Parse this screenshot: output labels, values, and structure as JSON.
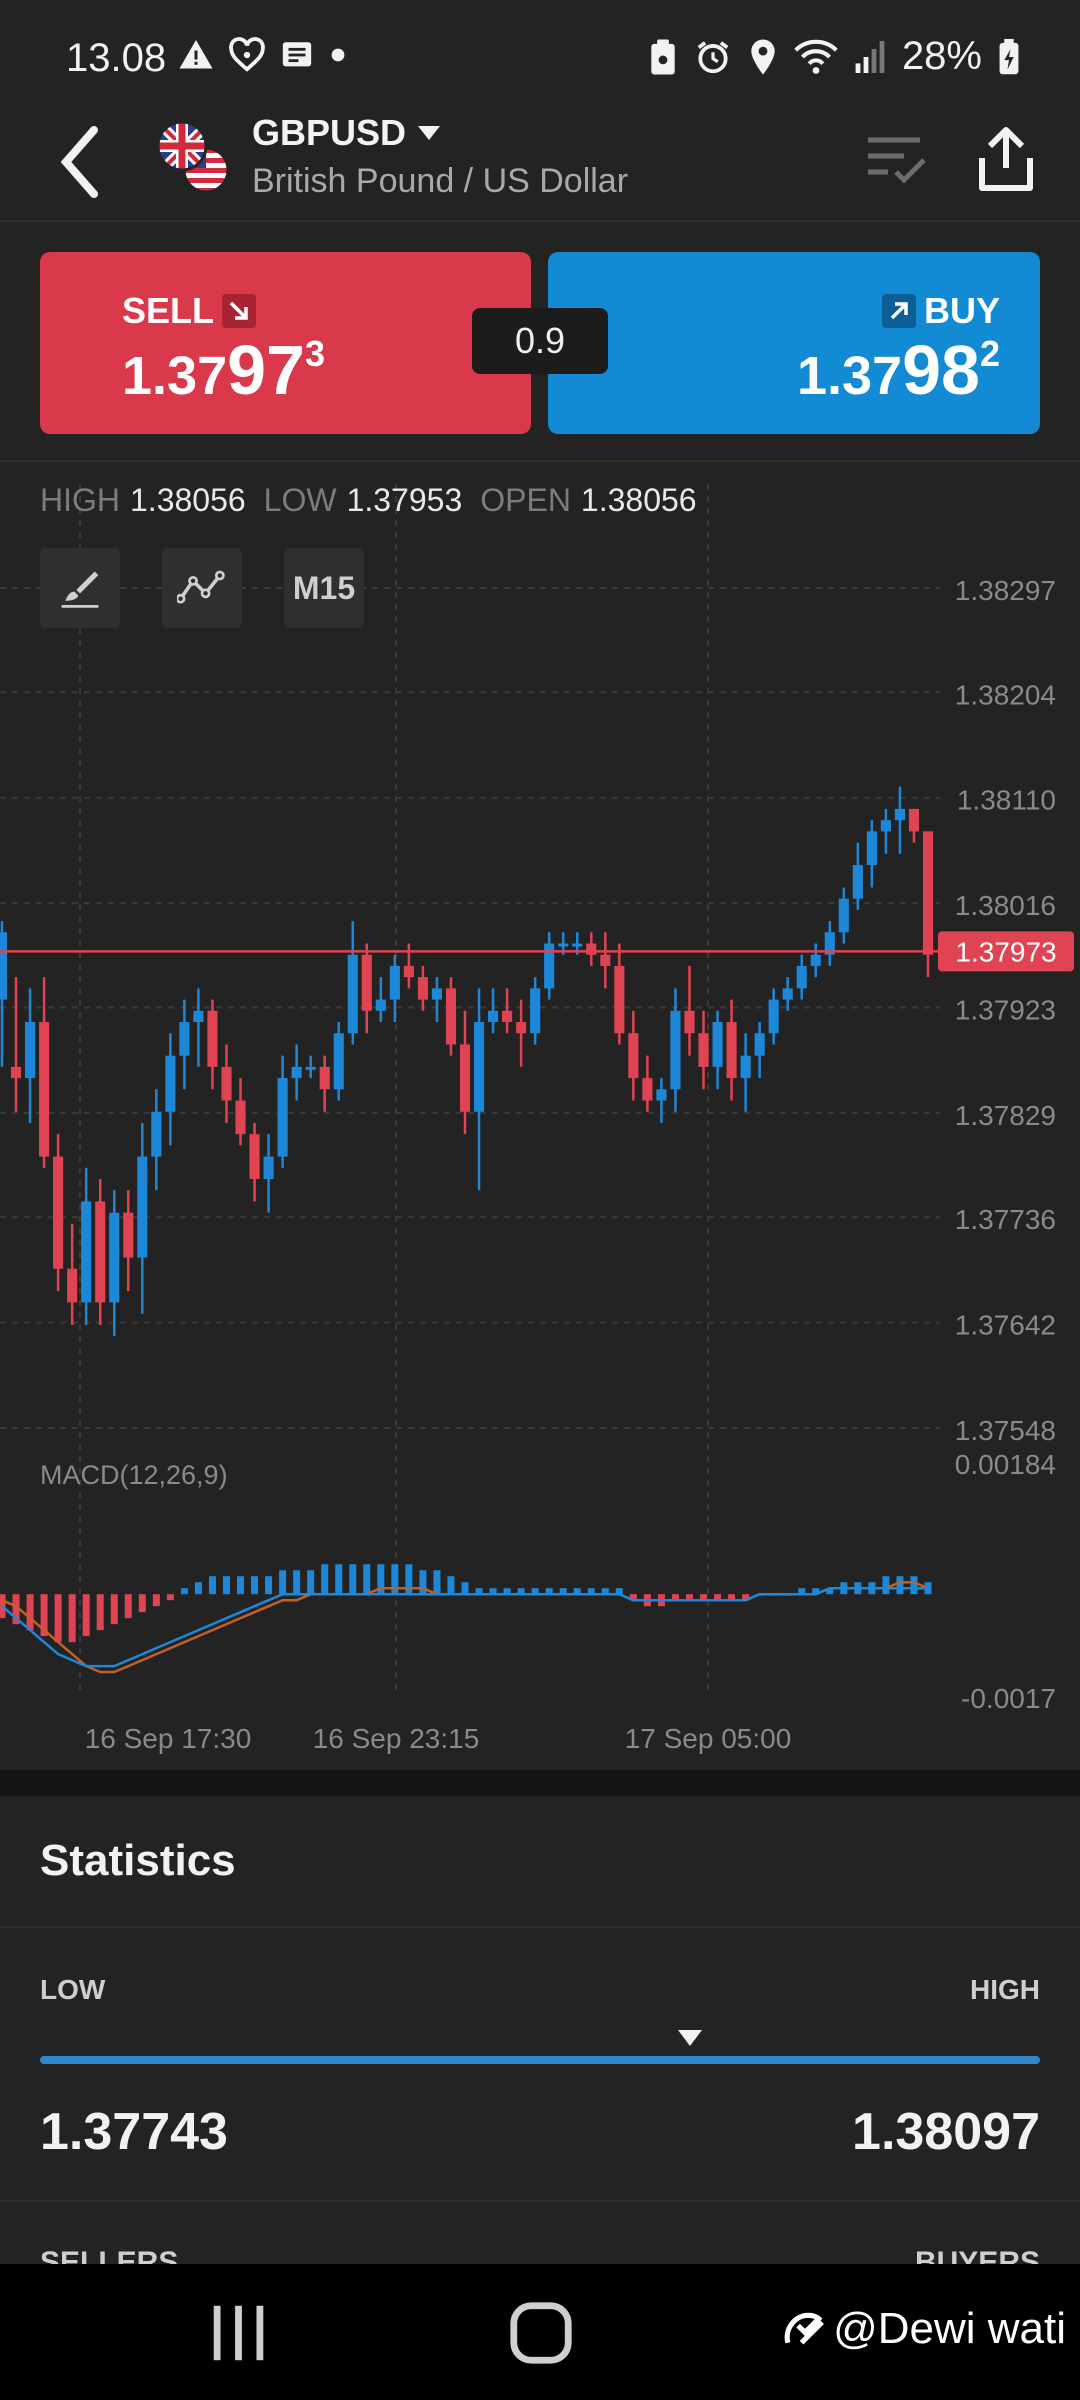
{
  "status_bar": {
    "time": "13.08",
    "battery": "28%"
  },
  "header": {
    "symbol": "GBPUSD",
    "description": "British Pound / US Dollar"
  },
  "trade": {
    "sell": {
      "label": "SELL",
      "price_small": "1.37",
      "price_big": "97",
      "price_sup": "3",
      "color": "#d9394a"
    },
    "buy": {
      "label": "BUY",
      "price_small": "1.37",
      "price_big": "98",
      "price_sup": "2",
      "color": "#138ad4"
    },
    "spread": "0.9"
  },
  "ohl": {
    "high_label": "HIGH",
    "high": "1.38056",
    "low_label": "LOW",
    "low": "1.37953",
    "open_label": "OPEN",
    "open": "1.38056"
  },
  "toolbar": {
    "timeframe": "M15"
  },
  "chart_data": {
    "type": "candlestick",
    "price_axis": [
      "1.38297",
      "1.38204",
      "1.38110",
      "1.38016",
      "1.37923",
      "1.37829",
      "1.37736",
      "1.37642",
      "1.37548"
    ],
    "current_price": "1.37973",
    "current_price_value": 1.37973,
    "ylim": [
      1.37548,
      1.38297
    ],
    "x_labels": [
      "16 Sep  17:30",
      "16 Sep  23:15",
      "17 Sep  05:00"
    ],
    "colors": {
      "up": "#1e88d8",
      "down": "#e04452",
      "grid": "#3a3a3a"
    },
    "candles": [
      [
        1.3793,
        1.38,
        1.3787,
        1.3799
      ],
      [
        1.3787,
        1.3795,
        1.3783,
        1.3786
      ],
      [
        1.3786,
        1.3794,
        1.3782,
        1.3791
      ],
      [
        1.3791,
        1.3795,
        1.3778,
        1.3779
      ],
      [
        1.3779,
        1.3781,
        1.3767,
        1.3769
      ],
      [
        1.3769,
        1.3773,
        1.3764,
        1.3766
      ],
      [
        1.3766,
        1.3778,
        1.3764,
        1.3775
      ],
      [
        1.3775,
        1.3777,
        1.3764,
        1.3766
      ],
      [
        1.3766,
        1.3776,
        1.3763,
        1.3774
      ],
      [
        1.3774,
        1.3776,
        1.3767,
        1.377
      ],
      [
        1.377,
        1.3782,
        1.3765,
        1.3779
      ],
      [
        1.3779,
        1.3785,
        1.3776,
        1.3783
      ],
      [
        1.3783,
        1.379,
        1.378,
        1.3788
      ],
      [
        1.3788,
        1.3793,
        1.3785,
        1.3791
      ],
      [
        1.3791,
        1.3794,
        1.3787,
        1.3792
      ],
      [
        1.3792,
        1.3793,
        1.3785,
        1.3787
      ],
      [
        1.3787,
        1.3789,
        1.3782,
        1.3784
      ],
      [
        1.3784,
        1.3786,
        1.378,
        1.3781
      ],
      [
        1.3781,
        1.3782,
        1.3775,
        1.3777
      ],
      [
        1.3777,
        1.3781,
        1.3774,
        1.3779
      ],
      [
        1.3779,
        1.3788,
        1.3778,
        1.3786
      ],
      [
        1.3786,
        1.3789,
        1.3784,
        1.3787
      ],
      [
        1.3787,
        1.3788,
        1.3786,
        1.3787
      ],
      [
        1.3787,
        1.3788,
        1.3783,
        1.3785
      ],
      [
        1.3785,
        1.3791,
        1.3784,
        1.379
      ],
      [
        1.379,
        1.38,
        1.3789,
        1.3797
      ],
      [
        1.3797,
        1.3798,
        1.379,
        1.3792
      ],
      [
        1.3792,
        1.3795,
        1.3791,
        1.3793
      ],
      [
        1.3793,
        1.3797,
        1.3791,
        1.3796
      ],
      [
        1.3796,
        1.3798,
        1.3794,
        1.3795
      ],
      [
        1.3795,
        1.3796,
        1.3792,
        1.3793
      ],
      [
        1.3793,
        1.3795,
        1.3791,
        1.3794
      ],
      [
        1.3794,
        1.3795,
        1.3788,
        1.3789
      ],
      [
        1.3789,
        1.3792,
        1.3781,
        1.3783
      ],
      [
        1.3783,
        1.3794,
        1.3776,
        1.3791
      ],
      [
        1.3791,
        1.3794,
        1.379,
        1.3792
      ],
      [
        1.3792,
        1.3794,
        1.379,
        1.3791
      ],
      [
        1.3791,
        1.3793,
        1.3787,
        1.379
      ],
      [
        1.379,
        1.3795,
        1.3789,
        1.3794
      ],
      [
        1.3794,
        1.3799,
        1.3793,
        1.3798
      ],
      [
        1.3798,
        1.3799,
        1.3797,
        1.3798
      ],
      [
        1.3798,
        1.3799,
        1.3797,
        1.3798
      ],
      [
        1.3798,
        1.3799,
        1.3796,
        1.3797
      ],
      [
        1.3797,
        1.3799,
        1.3794,
        1.3796
      ],
      [
        1.3796,
        1.3798,
        1.3789,
        1.379
      ],
      [
        1.379,
        1.3792,
        1.3784,
        1.3786
      ],
      [
        1.3786,
        1.3788,
        1.3783,
        1.3784
      ],
      [
        1.3784,
        1.3786,
        1.3782,
        1.3785
      ],
      [
        1.3785,
        1.3794,
        1.3783,
        1.3792
      ],
      [
        1.3792,
        1.3796,
        1.3788,
        1.379
      ],
      [
        1.379,
        1.3792,
        1.3785,
        1.3787
      ],
      [
        1.3787,
        1.3792,
        1.3785,
        1.3791
      ],
      [
        1.3791,
        1.3793,
        1.3784,
        1.3786
      ],
      [
        1.3786,
        1.379,
        1.3783,
        1.3788
      ],
      [
        1.3788,
        1.3791,
        1.3786,
        1.379
      ],
      [
        1.379,
        1.3794,
        1.3789,
        1.3793
      ],
      [
        1.3793,
        1.3795,
        1.3792,
        1.3794
      ],
      [
        1.3794,
        1.3797,
        1.3793,
        1.3796
      ],
      [
        1.3796,
        1.3798,
        1.3795,
        1.3797
      ],
      [
        1.3797,
        1.38,
        1.3796,
        1.3799
      ],
      [
        1.3799,
        1.3803,
        1.3798,
        1.3802
      ],
      [
        1.3802,
        1.3807,
        1.3801,
        1.3805
      ],
      [
        1.3805,
        1.3809,
        1.3803,
        1.3808
      ],
      [
        1.3808,
        1.381,
        1.3806,
        1.3809
      ],
      [
        1.3809,
        1.3812,
        1.3806,
        1.381
      ],
      [
        1.381,
        1.381,
        1.3807,
        1.3808
      ],
      [
        1.3808,
        1.3808,
        1.3795,
        1.3797
      ]
    ],
    "macd": {
      "label": "MACD(12,26,9)",
      "axis_top": "0.00184",
      "axis_bottom": "-0.0017",
      "ylim": [
        -0.0017,
        0.00184
      ],
      "histogram": [
        -0.0004,
        -0.0005,
        -0.0006,
        -0.0007,
        -0.0008,
        -0.0008,
        -0.0007,
        -0.0006,
        -0.0005,
        -0.0004,
        -0.0003,
        -0.0002,
        -0.0001,
        0.0001,
        0.0002,
        0.0003,
        0.0003,
        0.0003,
        0.0003,
        0.0003,
        0.0004,
        0.0004,
        0.0004,
        0.0005,
        0.0005,
        0.0005,
        0.0005,
        0.0005,
        0.0005,
        0.0005,
        0.0004,
        0.0004,
        0.0003,
        0.0002,
        0.0001,
        0.0001,
        0.0001,
        0.0001,
        0.0001,
        0.0001,
        0.0001,
        0.0001,
        0.0001,
        0.0001,
        0.0001,
        -0.0001,
        -0.0002,
        -0.0002,
        -0.0001,
        -0.0001,
        -0.0001,
        -0.0001,
        -0.0001,
        -0.0001,
        0.0,
        0.0,
        0.0,
        0.0001,
        0.0001,
        0.0001,
        0.0002,
        0.0002,
        0.0002,
        0.0003,
        0.0003,
        0.0003,
        0.0002
      ],
      "macd_line": [
        -0.0002,
        -0.0004,
        -0.0006,
        -0.0008,
        -0.001,
        -0.0011,
        -0.0012,
        -0.0012,
        -0.0012,
        -0.0011,
        -0.001,
        -0.0009,
        -0.0008,
        -0.0007,
        -0.0006,
        -0.0005,
        -0.0004,
        -0.0003,
        -0.0002,
        -0.0001,
        0.0,
        0.0,
        0.0,
        0.0,
        0.0,
        0.0,
        0.0,
        0.0,
        0.0,
        0.0,
        0.0,
        0.0,
        0.0,
        0.0,
        0.0,
        0.0,
        0.0,
        0.0,
        0.0,
        0.0,
        0.0,
        0.0,
        0.0,
        0.0,
        0.0,
        -0.0001,
        -0.0001,
        -0.0001,
        -0.0001,
        -0.0001,
        -0.0001,
        -0.0001,
        -0.0001,
        -0.0001,
        0.0,
        0.0,
        0.0,
        0.0,
        0.0,
        0.0001,
        0.0001,
        0.0001,
        0.0001,
        0.0001,
        0.0001,
        0.0001,
        0.0001
      ],
      "signal_line": [
        -0.0001,
        -0.0002,
        -0.0004,
        -0.0006,
        -0.0008,
        -0.001,
        -0.0012,
        -0.0013,
        -0.0013,
        -0.0012,
        -0.0011,
        -0.001,
        -0.0009,
        -0.0008,
        -0.0007,
        -0.0006,
        -0.0005,
        -0.0004,
        -0.0003,
        -0.0002,
        -0.0001,
        -0.0001,
        0.0,
        0.0,
        0.0,
        0.0,
        0.0,
        0.0001,
        0.0001,
        0.0001,
        0.0001,
        0.0,
        0.0,
        0.0,
        0.0,
        0.0,
        0.0,
        0.0,
        0.0,
        0.0,
        0.0,
        0.0,
        0.0,
        0.0,
        0.0,
        -0.0001,
        -0.0001,
        -0.0001,
        -0.0001,
        -0.0001,
        -0.0001,
        -0.0001,
        -0.0001,
        -0.0001,
        0.0,
        0.0,
        0.0,
        0.0,
        0.0,
        0.0001,
        0.0001,
        0.0001,
        0.0001,
        0.0001,
        0.0002,
        0.0002,
        0.0001
      ],
      "colors": {
        "macd": "#1e88d8",
        "signal": "#c0602a",
        "hist_pos": "#1e88d8",
        "hist_neg": "#e04452"
      }
    }
  },
  "statistics": {
    "title": "Statistics",
    "low_label": "LOW",
    "high_label": "HIGH",
    "low_value": "1.37743",
    "high_value": "1.38097",
    "current_fraction": 0.65,
    "sellers_label": "SELLERS",
    "buyers_label": "BUYERS"
  },
  "watermark": "@Dewi wati"
}
